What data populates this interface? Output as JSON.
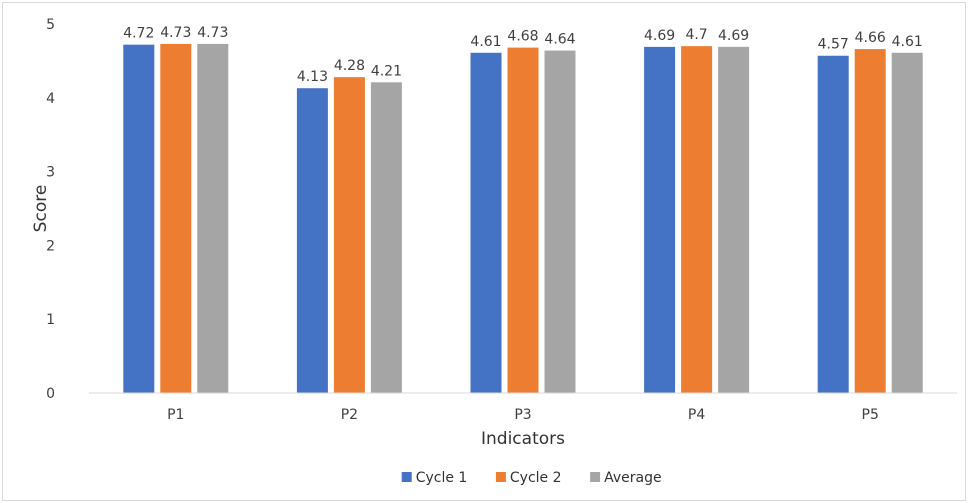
{
  "chart_data": {
    "type": "bar",
    "title": "",
    "xlabel": "Indicators",
    "ylabel": "Score",
    "ylim": [
      0,
      5
    ],
    "yticks": [
      0,
      1,
      2,
      3,
      4,
      5
    ],
    "grid": false,
    "legend_position": "bottom",
    "categories": [
      "P1",
      "P2",
      "P3",
      "P4",
      "P5"
    ],
    "series": [
      {
        "name": "Cycle 1",
        "color": "#4472c4",
        "values": [
          4.72,
          4.13,
          4.61,
          4.69,
          4.57
        ]
      },
      {
        "name": "Cycle 2",
        "color": "#ed7d31",
        "values": [
          4.73,
          4.28,
          4.68,
          4.7,
          4.66
        ]
      },
      {
        "name": "Average",
        "color": "#a5a5a5",
        "values": [
          4.73,
          4.21,
          4.64,
          4.69,
          4.61
        ]
      }
    ]
  }
}
